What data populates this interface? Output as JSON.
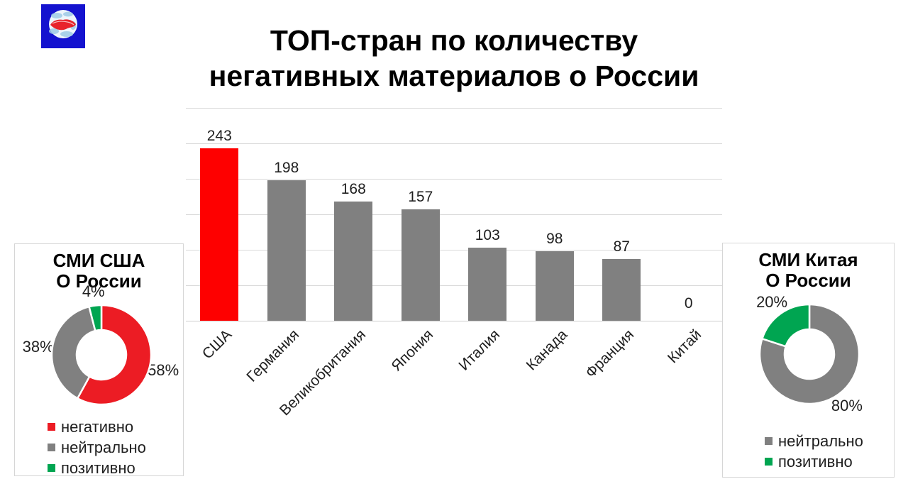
{
  "title": {
    "line1": "ТОП-стран по количеству",
    "line2": "негативных материалов о России"
  },
  "logo": {
    "name": "globe-on-blue-square",
    "colors": {
      "square": "#1412cf",
      "ocean": "#eef6fc",
      "clouds": "#9fcbe6",
      "land": "#e8232b"
    }
  },
  "colors": {
    "bar_highlight": "#fe0000",
    "bar_default": "#808080",
    "negative": "#ec1c24",
    "neutral": "#808080",
    "positive": "#00a551",
    "gridline": "#d9d9d9"
  },
  "chart_data": [
    {
      "id": "top-countries-bar",
      "type": "bar",
      "title": "ТОП-стран по количеству негативных материалов о России",
      "categories": [
        "США",
        "Германия",
        "Великобритания",
        "Япония",
        "Италия",
        "Канада",
        "Франция",
        "Китай"
      ],
      "values": [
        243,
        198,
        168,
        157,
        103,
        98,
        87,
        0
      ],
      "bar_colors": [
        "#fe0000",
        "#808080",
        "#808080",
        "#808080",
        "#808080",
        "#808080",
        "#808080",
        "#808080"
      ],
      "data_labels": [
        "243",
        "198",
        "168",
        "157",
        "103",
        "98",
        "87",
        "0"
      ],
      "xlabel": "",
      "ylabel": "",
      "ylim": [
        0,
        300
      ],
      "grid_step": 50,
      "grid": true,
      "y_tick_labels_visible": false,
      "legend_position": "none"
    },
    {
      "id": "usa-media-donut",
      "type": "pie",
      "donut": true,
      "title_line1": "СМИ США",
      "title_line2": "О России",
      "slices": [
        {
          "label": "негативно",
          "value": 58,
          "pct_label": "58%",
          "color": "#ec1c24"
        },
        {
          "label": "нейтрально",
          "value": 38,
          "pct_label": "38%",
          "color": "#808080"
        },
        {
          "label": "позитивно",
          "value": 4,
          "pct_label": "4%",
          "color": "#00a551"
        }
      ],
      "legend_position": "bottom"
    },
    {
      "id": "china-media-donut",
      "type": "pie",
      "donut": true,
      "title_line1": "СМИ Китая",
      "title_line2": "О России",
      "slices": [
        {
          "label": "нейтрально",
          "value": 80,
          "pct_label": "80%",
          "color": "#808080"
        },
        {
          "label": "позитивно",
          "value": 20,
          "pct_label": "20%",
          "color": "#00a551"
        }
      ],
      "legend_position": "bottom"
    }
  ]
}
